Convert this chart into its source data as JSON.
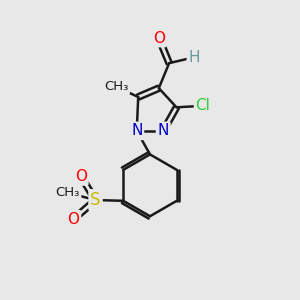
{
  "bg_color": "#e8e8e8",
  "bond_color": "#1a1a1a",
  "bond_width": 1.8,
  "atom_colors": {
    "O": "#ff0000",
    "N": "#0000cc",
    "Cl": "#33cc33",
    "S": "#ccbb00",
    "C": "#1a1a1a",
    "H": "#669999"
  },
  "font_size_atom": 11,
  "font_size_small": 9.5
}
